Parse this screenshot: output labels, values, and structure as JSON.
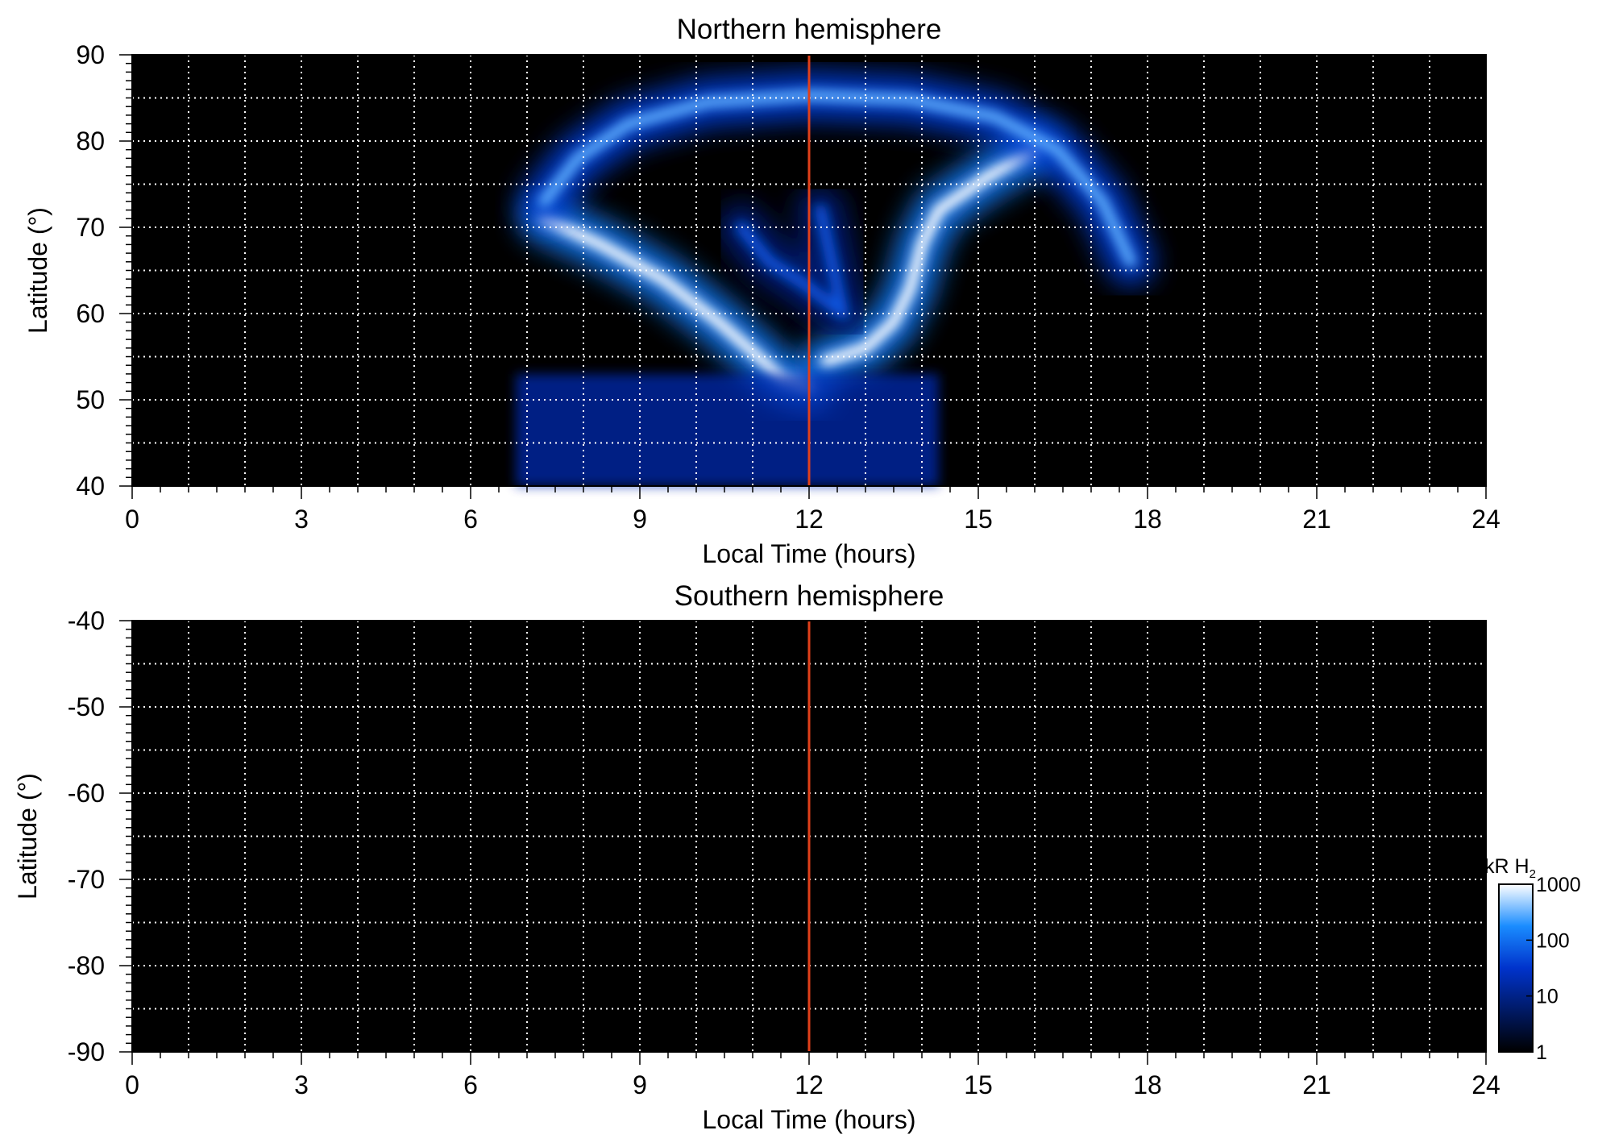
{
  "chart_data": [
    {
      "type": "heatmap",
      "title": "Northern hemisphere",
      "xlabel": "Local Time (hours)",
      "ylabel": "Latitude (°)",
      "xlim": [
        0,
        24
      ],
      "ylim": [
        40,
        90
      ],
      "x_ticks": [
        0,
        3,
        6,
        9,
        12,
        15,
        18,
        21,
        24
      ],
      "y_ticks": [
        40,
        50,
        60,
        70,
        80,
        90
      ],
      "x_grid_step": 1,
      "y_grid_step": 5,
      "grid": true,
      "background_color": "#000000",
      "grid_color": "#ffffff",
      "reference_line": {
        "axis": "x",
        "value": 12,
        "color": "#e0401a"
      },
      "emission_regions": [
        {
          "name": "main-oval-dawn",
          "points": [
            [
              7.3,
              71
            ],
            [
              8.3,
              68
            ],
            [
              9.4,
              64
            ],
            [
              10.4,
              59
            ],
            [
              11.1,
              55
            ],
            [
              11.5,
              52.5
            ],
            [
              12.0,
              51.5
            ]
          ],
          "intensity": 1000
        },
        {
          "name": "main-oval-dusk",
          "points": [
            [
              12.3,
              54.5
            ],
            [
              13.0,
              56
            ],
            [
              13.5,
              59
            ],
            [
              13.8,
              63
            ],
            [
              14.0,
              68
            ],
            [
              14.3,
              72
            ],
            [
              15.2,
              76
            ],
            [
              16.0,
              79
            ]
          ],
          "intensity": 1000
        },
        {
          "name": "outer-arc",
          "points": [
            [
              7.3,
              73
            ],
            [
              7.9,
              78
            ],
            [
              8.8,
              82
            ],
            [
              10.2,
              84.5
            ],
            [
              12.0,
              85.3
            ],
            [
              13.8,
              84.8
            ],
            [
              15.3,
              82.8
            ],
            [
              16.4,
              79
            ],
            [
              17.2,
              73
            ],
            [
              17.7,
              66
            ]
          ],
          "intensity": 300
        },
        {
          "name": "polar-patches",
          "points": [
            [
              10.8,
              70
            ],
            [
              11.3,
              66
            ],
            [
              11.9,
              63.5
            ],
            [
              12.6,
              60
            ],
            [
              12.2,
              72
            ]
          ],
          "intensity": 60
        },
        {
          "name": "diffuse-low-latitude",
          "lt_range": [
            6.8,
            14.3
          ],
          "lat_range": [
            40,
            53
          ],
          "intensity": 20
        }
      ]
    },
    {
      "type": "heatmap",
      "title": "Southern hemisphere",
      "xlabel": "Local Time (hours)",
      "ylabel": "Latitude (°)",
      "xlim": [
        0,
        24
      ],
      "ylim": [
        -90,
        -40
      ],
      "x_ticks": [
        0,
        3,
        6,
        9,
        12,
        15,
        18,
        21,
        24
      ],
      "y_ticks": [
        -40,
        -50,
        -60,
        -70,
        -80,
        -90
      ],
      "x_grid_step": 1,
      "y_grid_step": 5,
      "grid": true,
      "background_color": "#000000",
      "grid_color": "#ffffff",
      "reference_line": {
        "axis": "x",
        "value": 12,
        "color": "#e0401a"
      },
      "emission_regions": []
    }
  ],
  "colorbar": {
    "label_main": "kR H",
    "label_sub": "2",
    "scale": "log",
    "range": [
      1,
      1000
    ],
    "ticks": [
      1000,
      100,
      10,
      1
    ],
    "colors": [
      "#000000",
      "#001a66",
      "#0033cc",
      "#1a8cff",
      "#ffffff"
    ]
  }
}
